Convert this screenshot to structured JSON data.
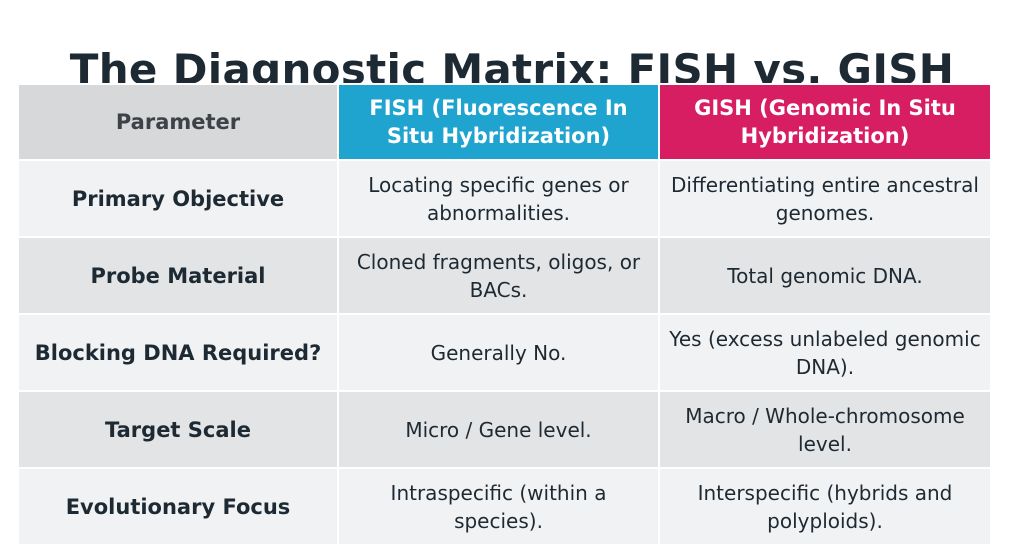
{
  "title": "The Diagnostic Matrix: FISH vs. GISH",
  "colors": {
    "fish_header": "#1fa3cf",
    "gish_header": "#d81e63",
    "param_header": "#d6d8da"
  },
  "table": {
    "headers": [
      "Parameter",
      "FISH (Fluorescence In Situ Hybridization)",
      "GISH (Genomic In Situ Hybridization)"
    ],
    "rows": [
      [
        "Primary Objective",
        "Locating specific genes or abnormalities.",
        "Differentiating entire ancestral genomes."
      ],
      [
        "Probe Material",
        "Cloned fragments, oligos, or BACs.",
        "Total genomic DNA."
      ],
      [
        "Blocking DNA Required?",
        "Generally No.",
        "Yes (excess unlabeled genomic DNA)."
      ],
      [
        "Target Scale",
        "Micro / Gene level.",
        "Macro / Whole-chromosome level."
      ],
      [
        "Evolutionary Focus",
        "Intraspecific (within a species).",
        "Interspecific (hybrids and polyploids)."
      ]
    ]
  }
}
